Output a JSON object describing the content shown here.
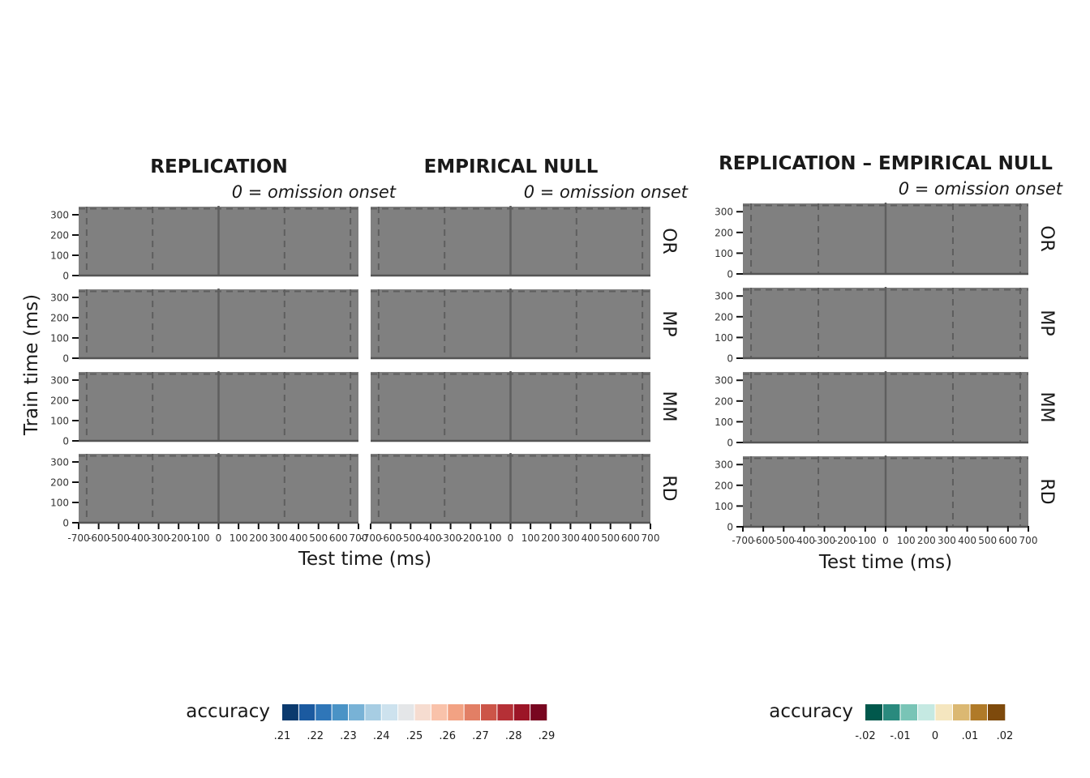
{
  "chart_data": [
    {
      "type": "heatmap",
      "title": "REPLICATION",
      "subtitle": "0 = omission onset",
      "xlabel": "Test time (ms)",
      "ylabel": "Train time (ms)",
      "xlim": [
        -700,
        700
      ],
      "ylim": [
        0,
        340
      ],
      "x_ticks": [
        -700,
        -600,
        -500,
        -400,
        -300,
        -200,
        -100,
        0,
        100,
        200,
        300,
        400,
        500,
        600,
        700
      ],
      "y_ticks": [
        0,
        100,
        200,
        300
      ],
      "facets": [
        "OR",
        "MP",
        "MM",
        "RD"
      ],
      "vlines_dashed": [
        -660,
        -330,
        330,
        660
      ],
      "vline_solid": 0,
      "hline_dashed": 330,
      "legend": {
        "title": "accuracy",
        "tick_labels": [
          ".21",
          ".22",
          ".23",
          ".24",
          ".25",
          ".26",
          ".27",
          ".28",
          ".29"
        ],
        "colors": [
          "#0b3a6e",
          "#1b5aa0",
          "#2f76b8",
          "#4a93c6",
          "#78b2d6",
          "#a7cde3",
          "#cde2ee",
          "#e4e6e8",
          "#f6dcd0",
          "#f9c2aa",
          "#f2a283",
          "#e27f65",
          "#cc5548",
          "#b53036",
          "#9c1527",
          "#780620"
        ]
      }
    },
    {
      "type": "heatmap",
      "title": "EMPIRICAL NULL",
      "subtitle": "0 = omission onset",
      "xlabel": "Test time (ms)",
      "ylabel": "Train time (ms)",
      "xlim": [
        -700,
        700
      ],
      "ylim": [
        0,
        340
      ],
      "x_ticks": [
        -700,
        -600,
        -500,
        -400,
        -300,
        -200,
        -100,
        0,
        100,
        200,
        300,
        400,
        500,
        600,
        700
      ],
      "y_ticks": [
        0,
        100,
        200,
        300
      ],
      "facets": [
        "OR",
        "MP",
        "MM",
        "RD"
      ],
      "vlines_dashed": [
        -660,
        -330,
        330,
        660
      ],
      "vline_solid": 0,
      "hline_dashed": 330
    },
    {
      "type": "heatmap",
      "title": "REPLICATION – EMPIRICAL NULL",
      "subtitle": "0 = omission onset",
      "xlabel": "Test time (ms)",
      "ylabel": "",
      "xlim": [
        -700,
        700
      ],
      "ylim": [
        0,
        340
      ],
      "x_ticks": [
        -700,
        -600,
        -500,
        -400,
        -300,
        -200,
        -100,
        0,
        100,
        200,
        300,
        400,
        500,
        600,
        700
      ],
      "y_ticks": [
        0,
        100,
        200,
        300
      ],
      "facets": [
        "OR",
        "MP",
        "MM",
        "RD"
      ],
      "vlines_dashed": [
        -660,
        -330,
        330,
        660
      ],
      "vline_solid": 0,
      "hline_dashed": 330,
      "legend": {
        "title": "accuracy",
        "tick_labels": [
          "-.02",
          "-.01",
          "0",
          ".01",
          ".02"
        ],
        "colors": [
          "#01584c",
          "#2a8a7e",
          "#79c4b6",
          "#c5e9e2",
          "#f5e6bf",
          "#dbb872",
          "#b07a28",
          "#7e4a0c"
        ]
      }
    }
  ],
  "panel_color": "#808080"
}
